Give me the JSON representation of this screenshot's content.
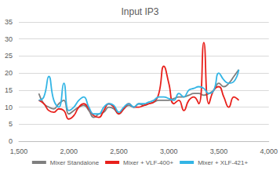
{
  "chart_data": {
    "type": "line",
    "title": "Input IP3",
    "x": [
      1700,
      1750,
      1800,
      1850,
      1900,
      1950,
      2000,
      2050,
      2100,
      2150,
      2200,
      2250,
      2300,
      2350,
      2400,
      2450,
      2500,
      2550,
      2600,
      2650,
      2700,
      2750,
      2800,
      2850,
      2900,
      2950,
      3000,
      3050,
      3100,
      3150,
      3200,
      3250,
      3300,
      3350,
      3400,
      3450,
      3500,
      3550,
      3600,
      3650,
      3700
    ],
    "series": [
      {
        "name": "Mixer Standalone",
        "color": "#7f7f7f",
        "values": [
          14,
          11,
          10,
          9.5,
          11,
          12,
          8,
          9,
          10,
          10.5,
          9,
          7,
          8,
          8.5,
          10,
          9.5,
          8,
          9.5,
          10.5,
          10,
          11,
          10.5,
          11,
          11.5,
          12,
          12,
          12,
          12.5,
          13,
          13,
          13.5,
          14,
          14,
          13.5,
          14,
          15,
          17,
          16,
          17,
          19,
          21
        ]
      },
      {
        "name": "Mixer + VLF-400+",
        "color": "#e8201b",
        "values": [
          12,
          11,
          9,
          8.5,
          9.5,
          9,
          6.5,
          7.5,
          10,
          11,
          9.5,
          7.5,
          7,
          9,
          11,
          10,
          8,
          9.5,
          11,
          10,
          10,
          10.5,
          11,
          11.5,
          14,
          22,
          17,
          11,
          12,
          9,
          12,
          13,
          11,
          29,
          11,
          15,
          16,
          13,
          10,
          13,
          12
        ]
      },
      {
        "name": "Mixer + XLF-421+",
        "color": "#33b5e5",
        "values": [
          12,
          13,
          19,
          12,
          10,
          17,
          9,
          10,
          12,
          13,
          10,
          8,
          8,
          10,
          11,
          10.5,
          8.5,
          10,
          11,
          10,
          11,
          11,
          11.5,
          12,
          13,
          13,
          12.5,
          12,
          14,
          13,
          15,
          15.5,
          16,
          15.5,
          14,
          15,
          20,
          18,
          17,
          17.5,
          21
        ]
      }
    ],
    "xlim": [
      1500,
      4000
    ],
    "xticks": [
      1500,
      2000,
      2500,
      3000,
      3500,
      4000
    ],
    "ylim": [
      0,
      35
    ],
    "yticks": [
      0,
      5,
      10,
      15,
      20,
      25,
      30,
      35
    ],
    "grid": true,
    "legend": "bottom",
    "marker": "none",
    "line_style": "smooth"
  }
}
